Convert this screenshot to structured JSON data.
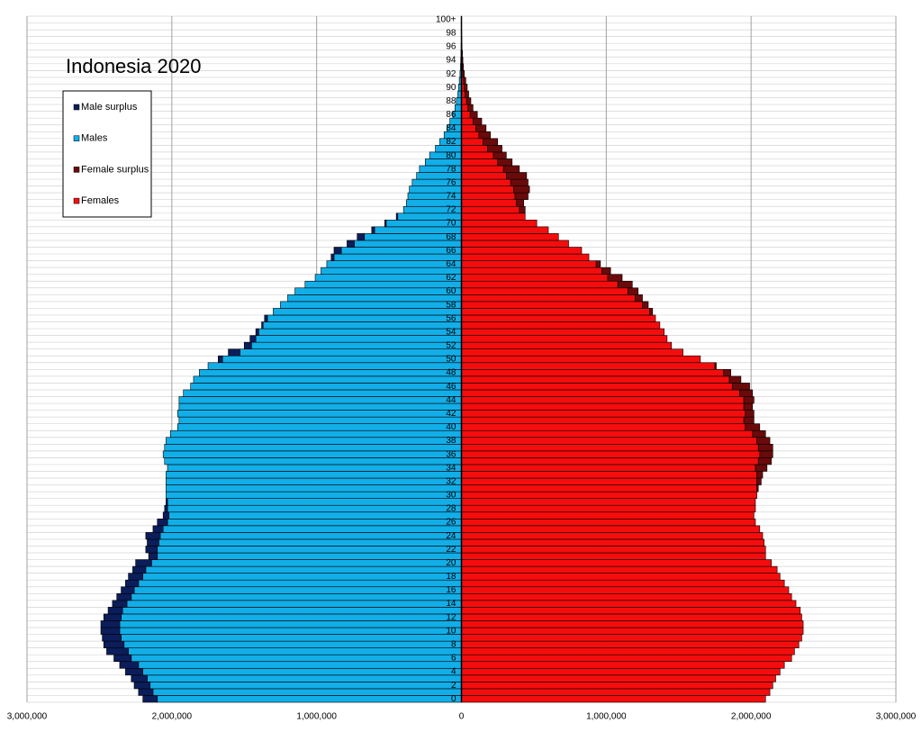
{
  "chart_data": {
    "type": "pyramid",
    "title": "Indonesia 2020",
    "categories": [
      "0",
      null,
      "2",
      null,
      "4",
      null,
      "6",
      null,
      "8",
      null,
      "10",
      null,
      "12",
      null,
      "14",
      null,
      "16",
      null,
      "18",
      null,
      "20",
      null,
      "22",
      null,
      "24",
      null,
      "26",
      null,
      "28",
      null,
      "30",
      null,
      "32",
      null,
      "34",
      null,
      "36",
      null,
      "38",
      null,
      "40",
      null,
      "42",
      null,
      "44",
      null,
      "46",
      null,
      "48",
      null,
      "50",
      null,
      "52",
      null,
      "54",
      null,
      "56",
      null,
      "58",
      null,
      "60",
      null,
      "62",
      null,
      "64",
      null,
      "66",
      null,
      "68",
      null,
      "70",
      null,
      "72",
      null,
      "74",
      null,
      "76",
      null,
      "78",
      null,
      "80",
      null,
      "82",
      null,
      "84",
      null,
      "86",
      null,
      "88",
      null,
      "90",
      null,
      "92",
      null,
      "94",
      null,
      "96",
      null,
      "98",
      null,
      "100+"
    ],
    "series": [
      {
        "name": "Male surplus",
        "color": "#0b1d5a",
        "side": "left",
        "values": [
          100000,
          100000,
          110000,
          110000,
          120000,
          130000,
          120000,
          150000,
          140000,
          130000,
          130000,
          130000,
          120000,
          100000,
          100000,
          100000,
          90000,
          90000,
          100000,
          90000,
          110000,
          60000,
          80000,
          80000,
          100000,
          70000,
          70000,
          40000,
          20000,
          10000,
          0,
          0,
          0,
          0,
          0,
          0,
          0,
          0,
          0,
          0,
          0,
          0,
          0,
          0,
          0,
          0,
          0,
          0,
          0,
          0,
          30000,
          80000,
          50000,
          40000,
          20000,
          10000,
          20000,
          0,
          0,
          0,
          0,
          0,
          0,
          0,
          0,
          20000,
          50000,
          50000,
          50000,
          20000,
          10000,
          10000,
          0,
          0,
          0,
          0,
          0,
          0,
          0,
          0,
          0,
          0,
          0,
          0,
          0,
          0,
          0,
          0,
          0,
          0,
          0,
          0,
          0,
          0,
          0,
          0,
          0,
          0,
          0,
          0,
          0
        ]
      },
      {
        "name": "Males",
        "color": "#12aee8",
        "side": "left",
        "values": [
          2100000,
          2130000,
          2150000,
          2170000,
          2200000,
          2230000,
          2280000,
          2300000,
          2330000,
          2350000,
          2360000,
          2360000,
          2350000,
          2340000,
          2310000,
          2280000,
          2260000,
          2230000,
          2200000,
          2180000,
          2140000,
          2100000,
          2100000,
          2090000,
          2080000,
          2060000,
          2030000,
          2020000,
          2030000,
          2030000,
          2040000,
          2040000,
          2040000,
          2040000,
          2030000,
          2050000,
          2060000,
          2050000,
          2040000,
          2010000,
          1960000,
          1950000,
          1960000,
          1950000,
          1950000,
          1920000,
          1870000,
          1850000,
          1810000,
          1750000,
          1650000,
          1530000,
          1450000,
          1420000,
          1400000,
          1370000,
          1340000,
          1300000,
          1250000,
          1200000,
          1150000,
          1080000,
          1010000,
          970000,
          930000,
          880000,
          830000,
          740000,
          670000,
          600000,
          520000,
          440000,
          400000,
          380000,
          370000,
          360000,
          340000,
          310000,
          290000,
          250000,
          220000,
          180000,
          150000,
          120000,
          100000,
          80000,
          60000,
          45000,
          35000,
          25000,
          20000,
          15000,
          10000,
          7000,
          5000,
          3000,
          2000,
          1000,
          1000,
          500,
          500
        ]
      },
      {
        "name": "Female surplus",
        "color": "#6a0a0a",
        "side": "right",
        "values": [
          0,
          0,
          0,
          0,
          0,
          0,
          0,
          0,
          0,
          0,
          0,
          0,
          0,
          0,
          0,
          0,
          0,
          0,
          0,
          0,
          0,
          0,
          0,
          0,
          0,
          0,
          0,
          0,
          0,
          0,
          0,
          10000,
          30000,
          40000,
          80000,
          90000,
          90000,
          100000,
          90000,
          90000,
          100000,
          70000,
          60000,
          60000,
          70000,
          90000,
          120000,
          80000,
          50000,
          10000,
          0,
          0,
          0,
          0,
          0,
          0,
          0,
          20000,
          40000,
          50000,
          70000,
          100000,
          100000,
          60000,
          30000,
          0,
          0,
          0,
          0,
          0,
          0,
          0,
          40000,
          50000,
          90000,
          110000,
          120000,
          140000,
          110000,
          100000,
          90000,
          100000,
          100000,
          80000,
          70000,
          60000,
          50000,
          35000,
          30000,
          25000,
          20000,
          15000,
          10000,
          7000,
          5000,
          4000,
          2000,
          2000,
          1000,
          500,
          500
        ]
      },
      {
        "name": "Females",
        "color": "#f50d0d",
        "side": "right",
        "values": [
          2100000,
          2130000,
          2150000,
          2170000,
          2200000,
          2230000,
          2280000,
          2300000,
          2330000,
          2350000,
          2360000,
          2360000,
          2350000,
          2340000,
          2310000,
          2280000,
          2260000,
          2230000,
          2200000,
          2180000,
          2140000,
          2100000,
          2100000,
          2090000,
          2080000,
          2060000,
          2030000,
          2020000,
          2030000,
          2030000,
          2040000,
          2040000,
          2040000,
          2040000,
          2030000,
          2050000,
          2060000,
          2050000,
          2040000,
          2010000,
          1960000,
          1950000,
          1960000,
          1950000,
          1950000,
          1920000,
          1870000,
          1850000,
          1810000,
          1750000,
          1650000,
          1530000,
          1450000,
          1420000,
          1400000,
          1370000,
          1340000,
          1300000,
          1250000,
          1200000,
          1150000,
          1080000,
          1010000,
          970000,
          930000,
          880000,
          830000,
          740000,
          670000,
          600000,
          520000,
          440000,
          400000,
          380000,
          370000,
          360000,
          340000,
          310000,
          290000,
          250000,
          220000,
          180000,
          150000,
          120000,
          100000,
          80000,
          60000,
          45000,
          35000,
          25000,
          20000,
          15000,
          10000,
          7000,
          5000,
          3000,
          2000,
          1000,
          1000,
          500,
          500
        ]
      }
    ],
    "xlim": [
      -3000000,
      3000000
    ],
    "xticks": [
      {
        "value": -3000000,
        "label": "3,000,000"
      },
      {
        "value": -2000000,
        "label": "2,000,000"
      },
      {
        "value": -1000000,
        "label": "1,000,000"
      },
      0,
      {
        "value": 1000000,
        "label": "1,000,000"
      },
      {
        "value": 2000000,
        "label": "2,000,000"
      },
      {
        "value": 3000000,
        "label": "3,000,000"
      }
    ],
    "grid": true,
    "legend": "upper left"
  }
}
